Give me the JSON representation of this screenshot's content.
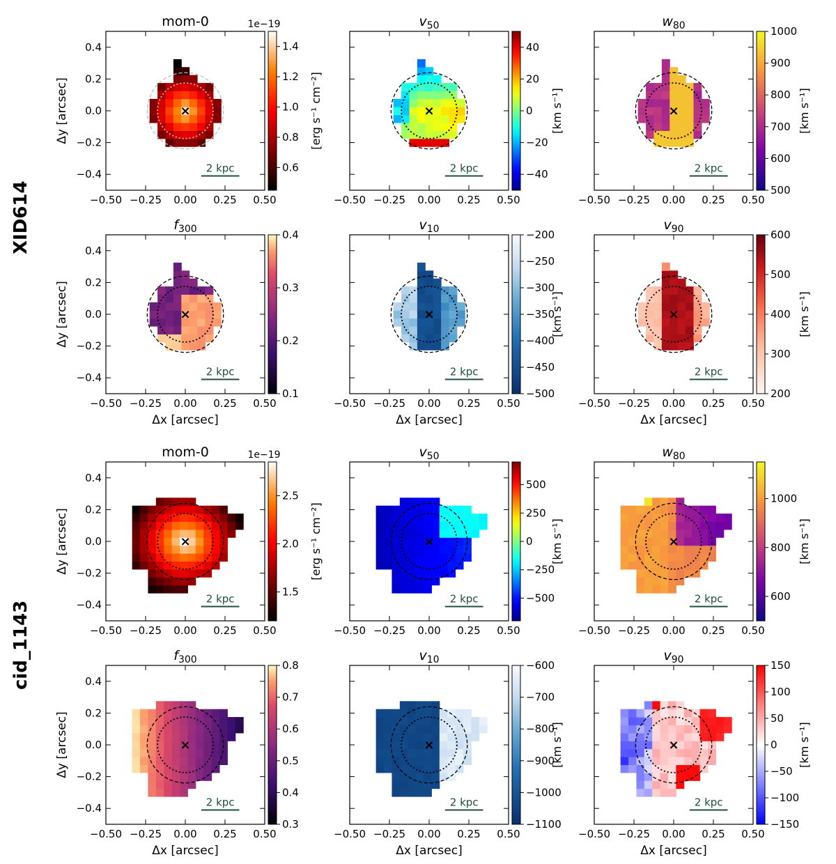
{
  "figure": {
    "row_labels": [
      "XID614",
      "cid_1143"
    ],
    "scalebar_label": "2 kpc",
    "xlabel": "Δx [arcsec]",
    "ylabel": "Δy [arcsec]",
    "x_ticks": [
      "−0.50",
      "−0.25",
      "0.00",
      "0.25",
      "0.50"
    ],
    "y_ticks": [
      "−0.4",
      "−0.2",
      "0.0",
      "0.2",
      "0.4"
    ],
    "center_marker": "×"
  },
  "chart_data": [
    {
      "type": "heatmap",
      "galaxy": "XID614",
      "title": "mom-0",
      "cmap": "afmhot",
      "cbar_ticks": [
        "0.6",
        "0.8",
        "1.0",
        "1.2",
        "1.4"
      ],
      "cbar_range": [
        0.45,
        1.5
      ],
      "cbar_label": "[erg s⁻¹ cm⁻²]",
      "offset_text": "1e−19",
      "xlim": [
        -0.5,
        0.5
      ],
      "ylim": [
        -0.5,
        0.5
      ]
    },
    {
      "type": "heatmap",
      "galaxy": "XID614",
      "title": "v50",
      "cmap": "jet",
      "cbar_ticks": [
        "40",
        "20",
        "0",
        "−20",
        "−40"
      ],
      "cbar_range": [
        -50,
        50
      ],
      "cbar_label": "[km s⁻¹]",
      "xlim": [
        -0.5,
        0.5
      ],
      "ylim": [
        -0.5,
        0.5
      ]
    },
    {
      "type": "heatmap",
      "galaxy": "XID614",
      "title": "w80",
      "cmap": "plasma",
      "cbar_ticks": [
        "1000",
        "900",
        "800",
        "700",
        "600",
        "500"
      ],
      "cbar_range": [
        500,
        1000
      ],
      "cbar_label": "[km s⁻¹]",
      "xlim": [
        -0.5,
        0.5
      ],
      "ylim": [
        -0.5,
        0.5
      ]
    },
    {
      "type": "heatmap",
      "galaxy": "XID614",
      "title": "f300",
      "cmap": "magma",
      "cbar_ticks": [
        "0.4",
        "0.3",
        "0.2",
        "0.1"
      ],
      "cbar_range": [
        0.1,
        0.4
      ],
      "cbar_label": "",
      "xlim": [
        -0.5,
        0.5
      ],
      "ylim": [
        -0.5,
        0.5
      ]
    },
    {
      "type": "heatmap",
      "galaxy": "XID614",
      "title": "v10",
      "cmap": "blues",
      "cbar_ticks": [
        "−200",
        "−250",
        "−300",
        "−350",
        "−400",
        "−450",
        "−500"
      ],
      "cbar_range": [
        -500,
        -200
      ],
      "cbar_label": "[km s⁻¹]",
      "xlim": [
        -0.5,
        0.5
      ],
      "ylim": [
        -0.5,
        0.5
      ]
    },
    {
      "type": "heatmap",
      "galaxy": "XID614",
      "title": "v90",
      "cmap": "reds",
      "cbar_ticks": [
        "600",
        "500",
        "400",
        "300",
        "200"
      ],
      "cbar_range": [
        200,
        600
      ],
      "cbar_label": "[km s⁻¹]",
      "xlim": [
        -0.5,
        0.5
      ],
      "ylim": [
        -0.5,
        0.5
      ]
    },
    {
      "type": "heatmap",
      "galaxy": "cid_1143",
      "title": "mom-0",
      "cmap": "afmhot",
      "cbar_ticks": [
        "2.5",
        "2.0",
        "1.5"
      ],
      "cbar_range": [
        1.2,
        2.85
      ],
      "cbar_label": "[erg s⁻¹ cm⁻²]",
      "offset_text": "1e−19",
      "xlim": [
        -0.5,
        0.5
      ],
      "ylim": [
        -0.5,
        0.5
      ]
    },
    {
      "type": "heatmap",
      "galaxy": "cid_1143",
      "title": "v50",
      "cmap": "jet",
      "cbar_ticks": [
        "500",
        "250",
        "0",
        "−250",
        "−500"
      ],
      "cbar_range": [
        -700,
        700
      ],
      "cbar_label": "[km s⁻¹]",
      "xlim": [
        -0.5,
        0.5
      ],
      "ylim": [
        -0.5,
        0.5
      ]
    },
    {
      "type": "heatmap",
      "galaxy": "cid_1143",
      "title": "w80",
      "cmap": "plasma",
      "cbar_ticks": [
        "1000",
        "800",
        "600"
      ],
      "cbar_range": [
        500,
        1150
      ],
      "cbar_label": "[km s⁻¹]",
      "xlim": [
        -0.5,
        0.5
      ],
      "ylim": [
        -0.5,
        0.5
      ]
    },
    {
      "type": "heatmap",
      "galaxy": "cid_1143",
      "title": "f300",
      "cmap": "magma",
      "cbar_ticks": [
        "0.8",
        "0.7",
        "0.6",
        "0.5",
        "0.4",
        "0.3"
      ],
      "cbar_range": [
        0.3,
        0.8
      ],
      "cbar_label": "",
      "xlim": [
        -0.5,
        0.5
      ],
      "ylim": [
        -0.5,
        0.5
      ]
    },
    {
      "type": "heatmap",
      "galaxy": "cid_1143",
      "title": "v10",
      "cmap": "blues",
      "cbar_ticks": [
        "−600",
        "−700",
        "−800",
        "−900",
        "−1000",
        "−1100"
      ],
      "cbar_range": [
        -1100,
        -600
      ],
      "cbar_label": "[km s⁻¹]",
      "xlim": [
        -0.5,
        0.5
      ],
      "ylim": [
        -0.5,
        0.5
      ]
    },
    {
      "type": "heatmap",
      "galaxy": "cid_1143",
      "title": "v90",
      "cmap": "bwr",
      "cbar_ticks": [
        "150",
        "100",
        "50",
        "0",
        "−50",
        "−100",
        "−150"
      ],
      "cbar_range": [
        -150,
        150
      ],
      "cbar_label": "[km s⁻¹]",
      "xlim": [
        -0.5,
        0.5
      ],
      "ylim": [
        -0.5,
        0.5
      ]
    }
  ]
}
